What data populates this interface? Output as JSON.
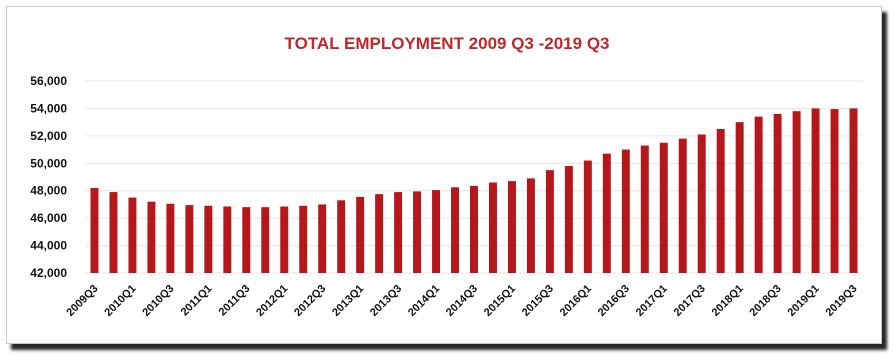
{
  "chart_data": {
    "type": "bar",
    "title": "TOTAL EMPLOYMENT 2009 Q3 -2019 Q3",
    "xlabel": "",
    "ylabel": "",
    "ylim": [
      42000,
      56000
    ],
    "yticks": [
      42000,
      44000,
      46000,
      48000,
      50000,
      52000,
      54000,
      56000
    ],
    "ytick_labels": [
      "42,000",
      "44,000",
      "46,000",
      "48,000",
      "50,000",
      "52,000",
      "54,000",
      "56,000"
    ],
    "categories": [
      "2009Q3",
      "2009Q4",
      "2010Q1",
      "2010Q2",
      "2010Q3",
      "2010Q4",
      "2011Q1",
      "2011Q2",
      "2011Q3",
      "2011Q4",
      "2012Q1",
      "2012Q2",
      "2012Q3",
      "2012Q4",
      "2013Q1",
      "2013Q2",
      "2013Q3",
      "2013Q4",
      "2014Q1",
      "2014Q2",
      "2014Q3",
      "2014Q4",
      "2015Q1",
      "2015Q2",
      "2015Q3",
      "2015Q4",
      "2016Q1",
      "2016Q2",
      "2016Q3",
      "2016Q4",
      "2017Q1",
      "2017Q2",
      "2017Q3",
      "2017Q4",
      "2018Q1",
      "2018Q2",
      "2018Q3",
      "2018Q4",
      "2019Q1",
      "2019Q2",
      "2019Q3"
    ],
    "shown_category_labels": [
      "2009Q3",
      "2010Q1",
      "2010Q3",
      "2011Q1",
      "2011Q3",
      "2012Q1",
      "2012Q3",
      "2013Q1",
      "2013Q3",
      "2014Q1",
      "2014Q3",
      "2015Q1",
      "2015Q3",
      "2016Q1",
      "2016Q3",
      "2017Q1",
      "2017Q3",
      "2018Q1",
      "2018Q3",
      "2019Q1",
      "2019Q3"
    ],
    "values": [
      48200,
      47900,
      47500,
      47200,
      47050,
      46950,
      46900,
      46850,
      46800,
      46800,
      46850,
      46900,
      47000,
      47300,
      47550,
      47750,
      47900,
      47950,
      48050,
      48250,
      48350,
      48600,
      48700,
      48900,
      49500,
      49800,
      50200,
      50700,
      51000,
      51300,
      51500,
      51800,
      52100,
      52500,
      53000,
      53400,
      53600,
      53800,
      54000,
      53950,
      54000
    ],
    "grid": true,
    "legend": "none"
  },
  "colors": {
    "bar": "#b5171b",
    "title": "#c0282c",
    "grid": "#e6e6e6",
    "background": "#ffffff"
  }
}
